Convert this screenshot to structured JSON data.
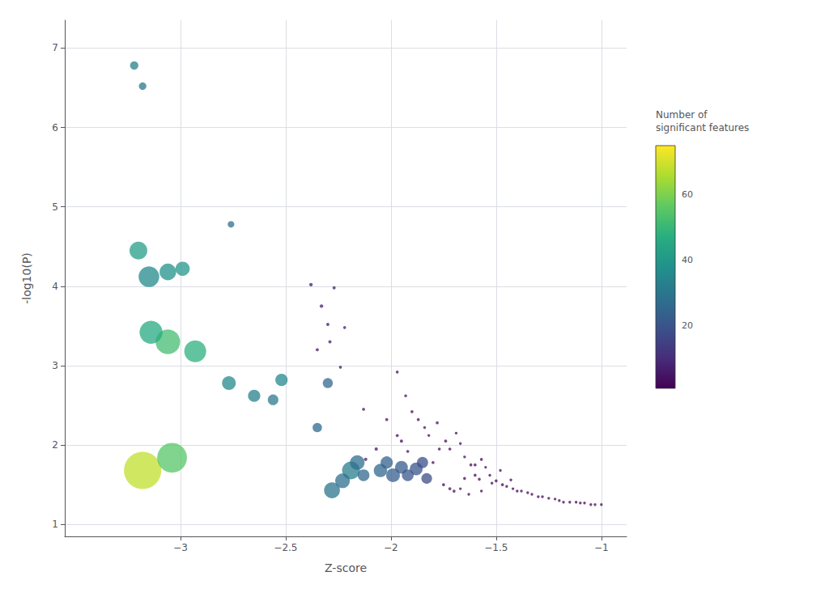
{
  "chart_data": {
    "type": "scatter",
    "xlabel": "Z-score",
    "ylabel": "-log10(P)",
    "xlim": [
      -3.55,
      -0.88
    ],
    "ylim": [
      0.85,
      7.35
    ],
    "xticks": [
      {
        "value": -3.0,
        "label": "−3"
      },
      {
        "value": -2.5,
        "label": "−2.5"
      },
      {
        "value": -2.0,
        "label": "−2"
      },
      {
        "value": -1.5,
        "label": "−1.5"
      },
      {
        "value": -1.0,
        "label": "−1"
      }
    ],
    "yticks": [
      1,
      2,
      3,
      4,
      5,
      6,
      7
    ],
    "grid": true,
    "colorbar": {
      "label": "Number of\nsignificant features",
      "range": [
        1,
        75
      ],
      "ticks": [
        20,
        40,
        60
      ]
    },
    "x": [
      -3.18,
      -3.04,
      -3.06,
      -3.14,
      -2.93,
      -3.15,
      -3.2,
      -2.19,
      -3.06,
      -2.28,
      -2.23,
      -2.16,
      -2.99,
      -2.77,
      -1.99,
      -2.05,
      -1.95,
      -1.88,
      -2.65,
      -2.52,
      -2.02,
      -2.13,
      -1.92,
      -1.85,
      -2.56,
      -1.83,
      -2.3,
      -2.35,
      -3.22,
      -3.18,
      -2.76,
      -2.38,
      -2.33,
      -2.07,
      -2.12,
      -2.3,
      -2.29,
      -2.35,
      -2.27,
      -1.95,
      -2.24,
      -2.13,
      -1.97,
      -1.93,
      -1.9,
      -1.87,
      -1.78,
      -1.74,
      -1.72,
      -1.62,
      -1.6,
      -1.58,
      -1.57,
      -1.5,
      -1.47,
      -1.75,
      -1.72,
      -1.7,
      -1.6,
      -1.65,
      -1.92,
      -1.97,
      -2.02,
      -2.22,
      -1.77,
      -1.8,
      -1.84,
      -1.82,
      -1.69,
      -1.67,
      -1.65,
      -1.55,
      -1.53,
      -1.52,
      -1.48,
      -1.45,
      -1.43,
      -1.42,
      -1.4,
      -1.38,
      -1.35,
      -1.33,
      -1.3,
      -1.28,
      -1.25,
      -1.22,
      -1.2,
      -1.18,
      -1.15,
      -1.12,
      -1.1,
      -1.08,
      -1.05,
      -1.03,
      -1.0,
      -1.67,
      -1.63,
      -1.57
    ],
    "values": [
      1.68,
      1.84,
      3.3,
      3.42,
      3.18,
      4.12,
      4.45,
      1.68,
      4.18,
      1.43,
      1.55,
      1.78,
      4.22,
      2.78,
      1.62,
      1.68,
      1.72,
      1.7,
      2.62,
      2.82,
      1.78,
      1.62,
      1.62,
      1.78,
      2.57,
      1.58,
      2.78,
      2.22,
      6.78,
      6.52,
      4.78,
      4.02,
      3.75,
      1.95,
      1.82,
      3.52,
      3.3,
      3.2,
      3.98,
      2.05,
      2.98,
      2.45,
      2.92,
      2.62,
      2.42,
      2.32,
      2.28,
      2.05,
      1.95,
      1.75,
      1.62,
      1.57,
      1.82,
      1.55,
      1.5,
      1.5,
      1.45,
      1.42,
      1.75,
      1.58,
      1.92,
      2.12,
      2.32,
      3.48,
      1.95,
      1.78,
      2.22,
      2.12,
      2.15,
      2.02,
      1.85,
      1.72,
      1.62,
      1.52,
      1.68,
      1.48,
      1.56,
      1.45,
      1.42,
      1.42,
      1.4,
      1.38,
      1.35,
      1.35,
      1.33,
      1.32,
      1.3,
      1.28,
      1.28,
      1.28,
      1.27,
      1.27,
      1.25,
      1.25,
      1.25,
      1.45,
      1.38,
      1.42
    ],
    "sizes": [
      1100,
      700,
      480,
      420,
      380,
      340,
      250,
      250,
      220,
      200,
      170,
      170,
      160,
      150,
      150,
      140,
      130,
      130,
      120,
      120,
      120,
      110,
      110,
      100,
      90,
      90,
      80,
      70,
      55,
      45,
      35,
      10,
      10,
      9,
      9,
      8,
      8,
      8,
      8,
      8,
      7,
      7,
      7,
      7,
      7,
      7,
      7,
      7,
      7,
      7,
      7,
      7,
      7,
      7,
      7,
      7,
      7,
      7,
      7,
      7,
      7,
      7,
      7,
      7,
      7,
      7,
      6,
      6,
      6,
      6,
      6,
      6,
      6,
      6,
      6,
      6,
      6,
      6,
      6,
      6,
      6,
      6,
      6,
      6,
      6,
      6,
      6,
      6,
      6,
      6,
      6,
      6,
      6,
      6,
      6,
      6,
      6,
      6
    ],
    "color_values": [
      68,
      55,
      52,
      46,
      48,
      36,
      42,
      32,
      38,
      30,
      28,
      28,
      40,
      36,
      23,
      25,
      22,
      20,
      33,
      35,
      24,
      26,
      21,
      19,
      31,
      18,
      26,
      26,
      33,
      30,
      28,
      7,
      7,
      5,
      6,
      6,
      6,
      6,
      7,
      4,
      5,
      5,
      5,
      5,
      4,
      4,
      4,
      4,
      3,
      3,
      3,
      3,
      3,
      2,
      2,
      3,
      3,
      3,
      3,
      3,
      4,
      4,
      4,
      6,
      3,
      3,
      4,
      4,
      3,
      3,
      3,
      3,
      2,
      2,
      2,
      2,
      2,
      2,
      2,
      2,
      2,
      2,
      2,
      2,
      2,
      2,
      2,
      2,
      2,
      2,
      2,
      2,
      2,
      2,
      2,
      3,
      3,
      3
    ]
  }
}
